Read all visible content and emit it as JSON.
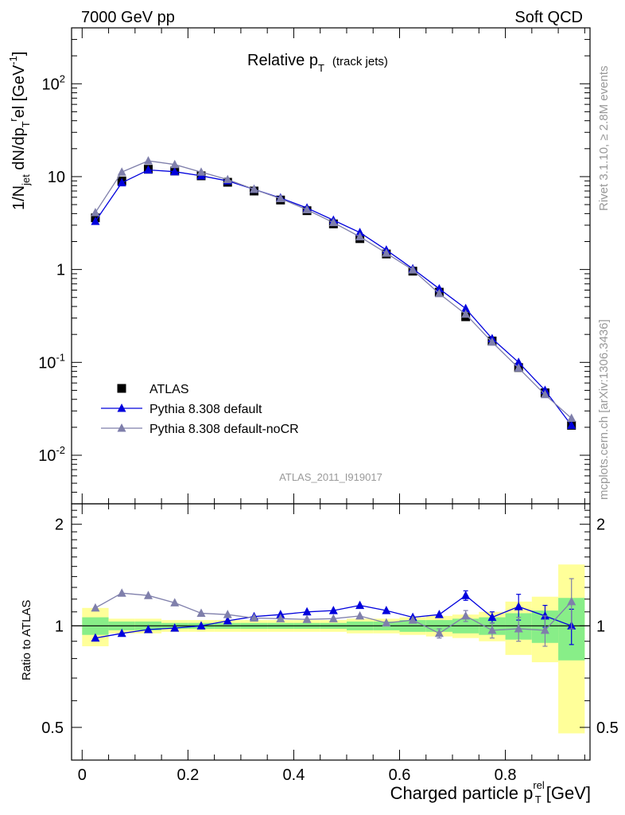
{
  "header": {
    "left": "7000 GeV pp",
    "right": "Soft QCD"
  },
  "side_labels": {
    "rivet": "Rivet 3.1.10, ≥ 2.8M events",
    "mcplots": "mcplots.cern.ch [arXiv:1306.3436]"
  },
  "chart_data": [
    {
      "type": "scatter",
      "panel": "main",
      "title": "Relative p_T (track jets)",
      "title_main": "Relative p",
      "title_sub": "T",
      "title_extra": "(track jets)",
      "analysis_label": "ATLAS_2011_I919017",
      "ylabel": "1/N_jet dN/dp_T^rel [GeV^-1]",
      "yscale": "log",
      "ylim": [
        0.003,
        400
      ],
      "xlim": [
        -0.02,
        0.96
      ],
      "x_ticks": [
        0,
        0.2,
        0.4,
        0.6,
        0.8
      ],
      "y_tick_labels": [
        "10^-2",
        "10^-1",
        "1",
        "10",
        "10^2"
      ],
      "x": [
        0.025,
        0.075,
        0.125,
        0.175,
        0.225,
        0.275,
        0.325,
        0.375,
        0.425,
        0.475,
        0.525,
        0.575,
        0.625,
        0.675,
        0.725,
        0.775,
        0.825,
        0.875,
        0.925
      ],
      "series": [
        {
          "name": "ATLAS",
          "color": "#000000",
          "marker": "square",
          "values": [
            3.6,
            9.0,
            12.0,
            11.5,
            10.2,
            8.7,
            7.0,
            5.6,
            4.3,
            3.1,
            2.15,
            1.47,
            0.96,
            0.57,
            0.31,
            0.17,
            0.088,
            0.047,
            0.021
          ]
        },
        {
          "name": "Pythia 8.308 default",
          "color": "#0000dd",
          "marker": "triangle",
          "values": [
            3.3,
            8.6,
            11.8,
            11.3,
            10.2,
            9.0,
            7.3,
            5.9,
            4.6,
            3.4,
            2.5,
            1.62,
            1.02,
            0.62,
            0.38,
            0.18,
            0.1,
            0.05,
            0.021
          ]
        },
        {
          "name": "Pythia 8.308 default-noCR",
          "color": "#7f7fab",
          "marker": "triangle",
          "values": [
            4.1,
            11.2,
            14.8,
            13.5,
            11.2,
            9.3,
            7.3,
            5.8,
            4.4,
            3.2,
            2.25,
            1.5,
            0.99,
            0.55,
            0.33,
            0.165,
            0.087,
            0.045,
            0.025
          ]
        }
      ]
    },
    {
      "type": "scatter",
      "panel": "ratio",
      "ylabel": "Ratio to ATLAS",
      "xlabel": "Charged particle p_T^rel [GeV]",
      "xlabel_main": "Charged particle p",
      "xlabel_sup": "rel",
      "xlabel_sub": "T",
      "xlabel_unit": "[GeV]",
      "ylim": [
        0.4,
        2.3
      ],
      "xlim": [
        -0.02,
        0.96
      ],
      "y_tick_labels": [
        "0.5",
        "1",
        "2"
      ],
      "x": [
        0.025,
        0.075,
        0.125,
        0.175,
        0.225,
        0.275,
        0.325,
        0.375,
        0.425,
        0.475,
        0.525,
        0.575,
        0.625,
        0.675,
        0.725,
        0.775,
        0.825,
        0.875,
        0.925
      ],
      "uncertainty_bands": {
        "yellow_half_width": [
          0.13,
          0.05,
          0.05,
          0.04,
          0.04,
          0.04,
          0.04,
          0.04,
          0.04,
          0.04,
          0.05,
          0.05,
          0.06,
          0.07,
          0.08,
          0.1,
          0.18,
          0.22,
          0.52
        ],
        "green_half_width": [
          0.06,
          0.03,
          0.03,
          0.02,
          0.02,
          0.02,
          0.02,
          0.02,
          0.02,
          0.02,
          0.03,
          0.03,
          0.04,
          0.04,
          0.05,
          0.06,
          0.09,
          0.11,
          0.21
        ],
        "yellow_color": "#ffff99",
        "green_color": "#88ee88"
      },
      "series": [
        {
          "name": "Pythia 8.308 default",
          "color": "#0000dd",
          "values": [
            0.92,
            0.95,
            0.975,
            0.985,
            1.0,
            1.035,
            1.065,
            1.08,
            1.1,
            1.11,
            1.15,
            1.11,
            1.06,
            1.08,
            1.23,
            1.06,
            1.14,
            1.07,
            1.0
          ],
          "errors": [
            0.01,
            0.01,
            0.01,
            0.01,
            0.01,
            0.01,
            0.01,
            0.01,
            0.01,
            0.01,
            0.01,
            0.01,
            0.01,
            0.01,
            0.04,
            0.04,
            0.1,
            0.08,
            0.12
          ]
        },
        {
          "name": "Pythia 8.308 default-noCR",
          "color": "#7f7fab",
          "values": [
            1.13,
            1.25,
            1.23,
            1.17,
            1.09,
            1.08,
            1.055,
            1.05,
            1.045,
            1.05,
            1.07,
            1.02,
            1.04,
            0.95,
            1.07,
            0.97,
            0.98,
            0.97,
            1.18
          ],
          "errors": [
            0.01,
            0.01,
            0.01,
            0.01,
            0.01,
            0.01,
            0.01,
            0.01,
            0.01,
            0.01,
            0.01,
            0.01,
            0.01,
            0.03,
            0.04,
            0.05,
            0.08,
            0.1,
            0.2
          ]
        }
      ]
    }
  ]
}
